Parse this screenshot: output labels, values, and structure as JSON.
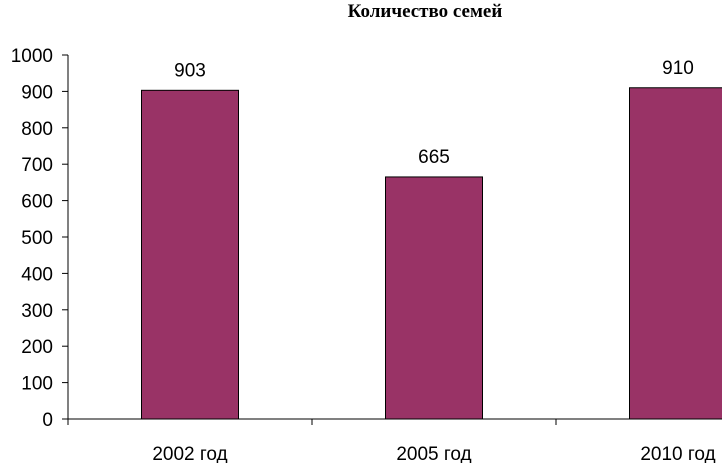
{
  "chart_data": {
    "type": "bar",
    "title": "Количество семей",
    "categories": [
      "2002 год",
      "2005 год",
      "2010 год"
    ],
    "values": [
      903,
      665,
      910
    ],
    "ylim": [
      0,
      1000
    ],
    "yticks": [
      0,
      100,
      200,
      300,
      400,
      500,
      600,
      700,
      800,
      900,
      1000
    ],
    "data_labels": true,
    "grid": false,
    "bar_color": "#993366"
  }
}
